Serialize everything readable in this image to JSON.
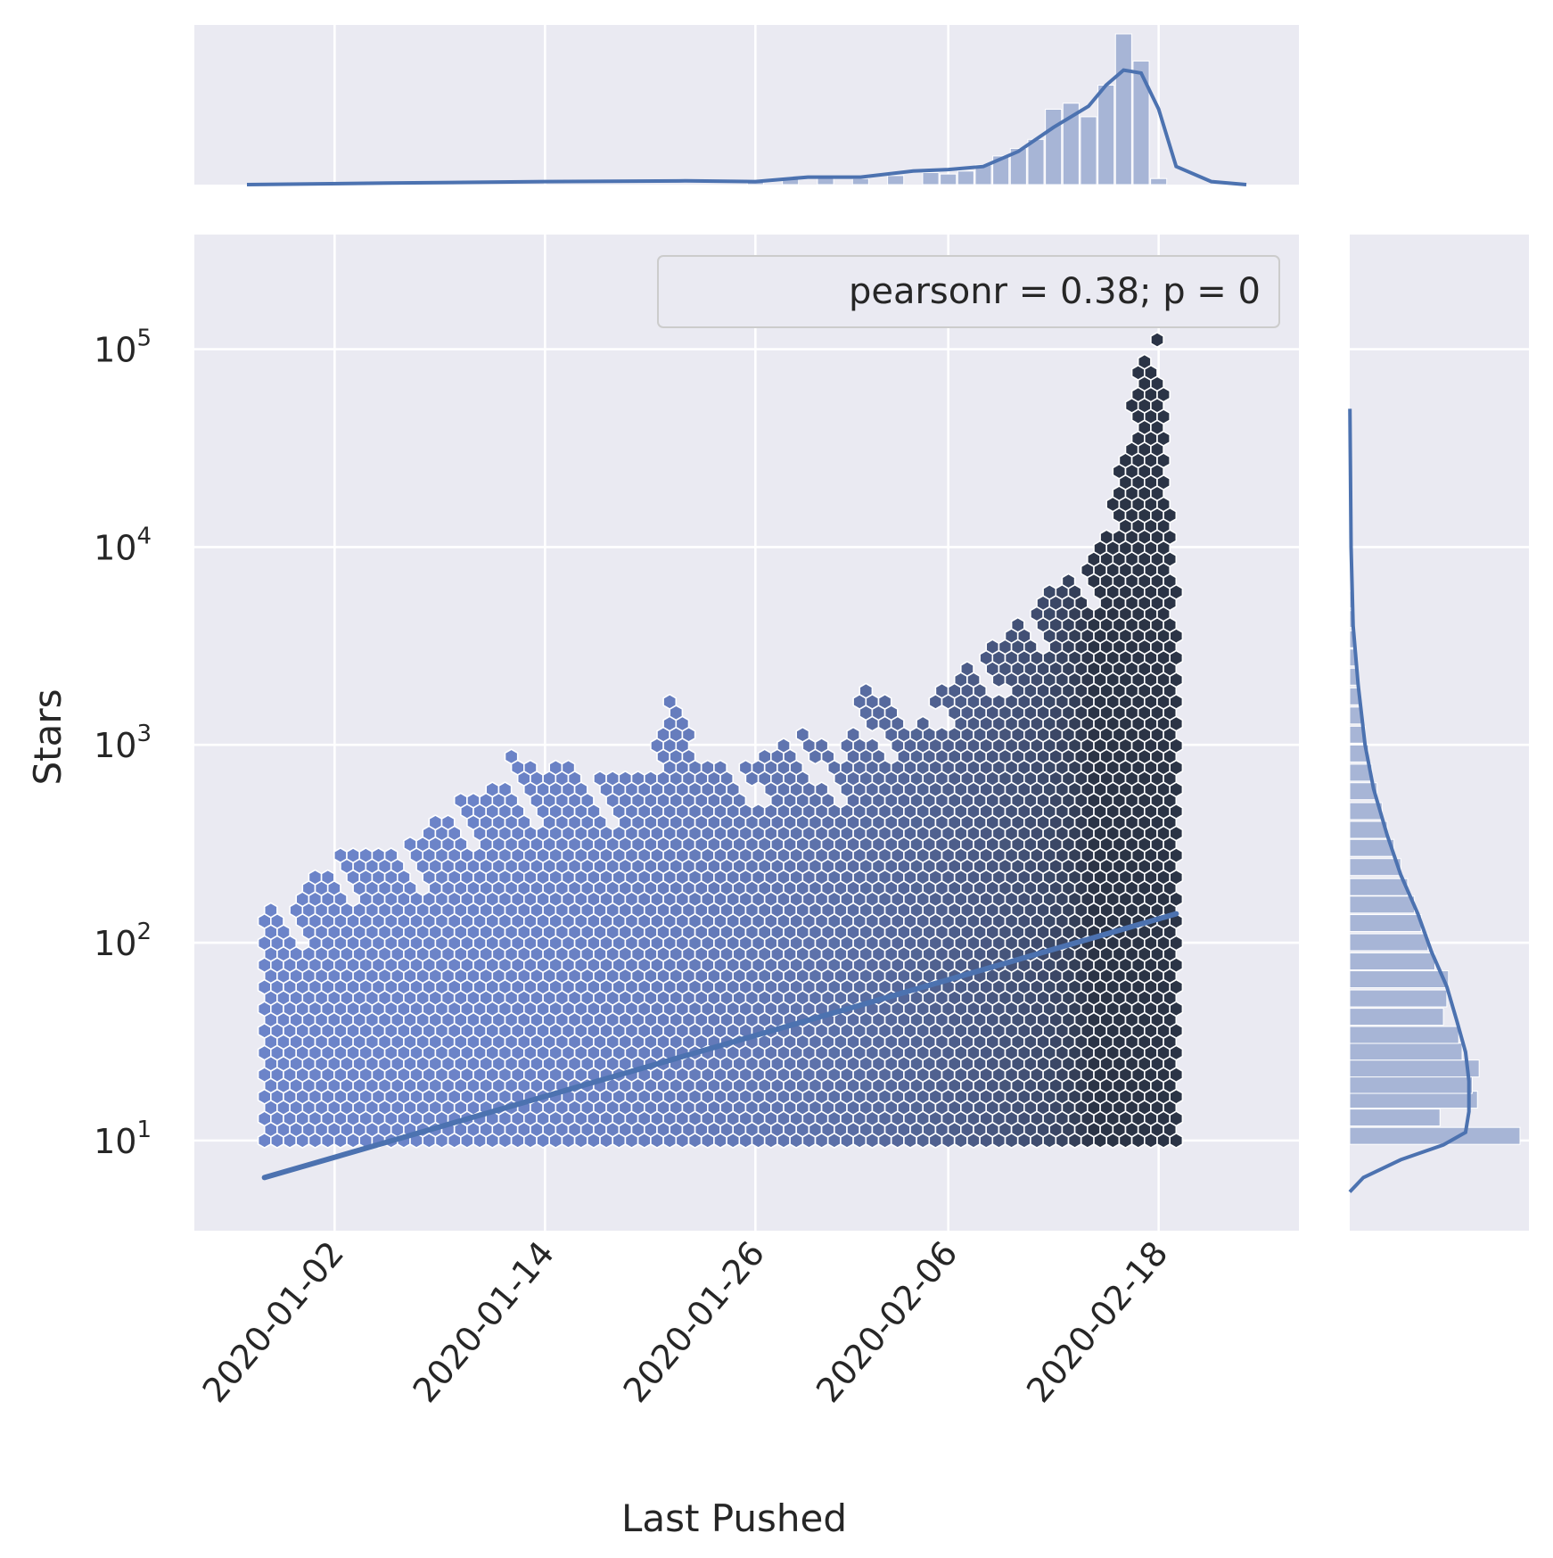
{
  "chart_data": {
    "type": "hexbin-jointplot",
    "xlabel": "Last Pushed",
    "ylabel": "Stars",
    "x_ticks": [
      "2020-01-02",
      "2020-01-14",
      "2020-01-26",
      "2020-02-06",
      "2020-02-18"
    ],
    "y_scale": "log",
    "y_ticks": [
      {
        "base": "10",
        "exp": "1",
        "value": 10
      },
      {
        "base": "10",
        "exp": "2",
        "value": 100
      },
      {
        "base": "10",
        "exp": "3",
        "value": 1000
      },
      {
        "base": "10",
        "exp": "4",
        "value": 10000
      },
      {
        "base": "10",
        "exp": "5",
        "value": 100000
      }
    ],
    "xlim": [
      "2019-12-25",
      "2020-02-26"
    ],
    "ylim": [
      3.5,
      380000
    ],
    "legend": {
      "text": "pearsonr = 0.38; p = 0",
      "placement": "upper right"
    },
    "grid": true,
    "regression_line": {
      "points": [
        {
          "x": "2019-12-29",
          "y": 6.5
        },
        {
          "x": "2020-02-19",
          "y": 140
        }
      ]
    },
    "hexbin_envelope": [
      {
        "x": "2019-12-29",
        "top": 140
      },
      {
        "x": "2019-12-31",
        "top": 170
      },
      {
        "x": "2020-01-02",
        "top": 290
      },
      {
        "x": "2020-01-05",
        "top": 270
      },
      {
        "x": "2020-01-07",
        "top": 340
      },
      {
        "x": "2020-01-09",
        "top": 520
      },
      {
        "x": "2020-01-11",
        "top": 600
      },
      {
        "x": "2020-01-12",
        "top": 900
      },
      {
        "x": "2020-01-14",
        "top": 700
      },
      {
        "x": "2020-01-15",
        "top": 800
      },
      {
        "x": "2020-01-18",
        "top": 700
      },
      {
        "x": "2020-01-20",
        "top": 700
      },
      {
        "x": "2020-01-21",
        "top": 1800
      },
      {
        "x": "2020-01-23",
        "top": 800
      },
      {
        "x": "2020-01-26",
        "top": 800
      },
      {
        "x": "2020-01-29",
        "top": 1200
      },
      {
        "x": "2020-01-31",
        "top": 800
      },
      {
        "x": "2020-02-01",
        "top": 2100
      },
      {
        "x": "2020-02-02",
        "top": 1800
      },
      {
        "x": "2020-02-04",
        "top": 1200
      },
      {
        "x": "2020-02-07",
        "top": 2700
      },
      {
        "x": "2020-02-09",
        "top": 3200
      },
      {
        "x": "2020-02-11",
        "top": 5500
      },
      {
        "x": "2020-02-13",
        "top": 7000
      },
      {
        "x": "2020-02-15",
        "top": 11000
      },
      {
        "x": "2020-02-17",
        "top": 100000
      },
      {
        "x": "2020-02-18",
        "top": 140000
      },
      {
        "x": "2020-02-19",
        "top": 7000
      }
    ],
    "hexbin_ymin": 10,
    "x_marginal": {
      "bins": [
        {
          "x": "2020-01-26",
          "count": 0.03
        },
        {
          "x": "2020-01-28",
          "count": 0.04
        },
        {
          "x": "2020-01-30",
          "count": 0.05
        },
        {
          "x": "2020-02-01",
          "count": 0.04
        },
        {
          "x": "2020-02-03",
          "count": 0.06
        },
        {
          "x": "2020-02-05",
          "count": 0.08
        },
        {
          "x": "2020-02-06",
          "count": 0.07
        },
        {
          "x": "2020-02-07",
          "count": 0.09
        },
        {
          "x": "2020-02-08",
          "count": 0.13
        },
        {
          "x": "2020-02-09",
          "count": 0.19
        },
        {
          "x": "2020-02-10",
          "count": 0.24
        },
        {
          "x": "2020-02-11",
          "count": 0.3
        },
        {
          "x": "2020-02-12",
          "count": 0.5
        },
        {
          "x": "2020-02-13",
          "count": 0.54
        },
        {
          "x": "2020-02-14",
          "count": 0.45
        },
        {
          "x": "2020-02-15",
          "count": 0.66
        },
        {
          "x": "2020-02-16",
          "count": 1.0
        },
        {
          "x": "2020-02-17",
          "count": 0.82
        },
        {
          "x": "2020-02-18",
          "count": 0.04
        }
      ],
      "kde": [
        {
          "x": "2019-12-28",
          "d": 0.0
        },
        {
          "x": "2020-01-05",
          "d": 0.01
        },
        {
          "x": "2020-01-14",
          "d": 0.02
        },
        {
          "x": "2020-01-22",
          "d": 0.025
        },
        {
          "x": "2020-01-26",
          "d": 0.02
        },
        {
          "x": "2020-01-29",
          "d": 0.05
        },
        {
          "x": "2020-02-01",
          "d": 0.05
        },
        {
          "x": "2020-02-04",
          "d": 0.09
        },
        {
          "x": "2020-02-06",
          "d": 0.1
        },
        {
          "x": "2020-02-08",
          "d": 0.12
        },
        {
          "x": "2020-02-10",
          "d": 0.22
        },
        {
          "x": "2020-02-12",
          "d": 0.38
        },
        {
          "x": "2020-02-14",
          "d": 0.52
        },
        {
          "x": "2020-02-15",
          "d": 0.66
        },
        {
          "x": "2020-02-16",
          "d": 0.76
        },
        {
          "x": "2020-02-17",
          "d": 0.74
        },
        {
          "x": "2020-02-18",
          "d": 0.5
        },
        {
          "x": "2020-02-19",
          "d": 0.12
        },
        {
          "x": "2020-02-21",
          "d": 0.02
        },
        {
          "x": "2020-02-23",
          "d": 0.0
        }
      ]
    },
    "y_marginal": {
      "bins": [
        {
          "y": 10.5,
          "count": 1.0
        },
        {
          "y": 13,
          "count": 0.53
        },
        {
          "y": 16,
          "count": 0.75
        },
        {
          "y": 19,
          "count": 0.72
        },
        {
          "y": 23,
          "count": 0.76
        },
        {
          "y": 28,
          "count": 0.66
        },
        {
          "y": 34,
          "count": 0.64
        },
        {
          "y": 42,
          "count": 0.55
        },
        {
          "y": 52,
          "count": 0.57
        },
        {
          "y": 65,
          "count": 0.58
        },
        {
          "y": 80,
          "count": 0.5
        },
        {
          "y": 100,
          "count": 0.46
        },
        {
          "y": 125,
          "count": 0.42
        },
        {
          "y": 155,
          "count": 0.38
        },
        {
          "y": 190,
          "count": 0.34
        },
        {
          "y": 240,
          "count": 0.3
        },
        {
          "y": 300,
          "count": 0.26
        },
        {
          "y": 370,
          "count": 0.22
        },
        {
          "y": 460,
          "count": 0.19
        },
        {
          "y": 580,
          "count": 0.16
        },
        {
          "y": 720,
          "count": 0.13
        },
        {
          "y": 900,
          "count": 0.11
        },
        {
          "y": 1120,
          "count": 0.09
        },
        {
          "y": 1400,
          "count": 0.07
        },
        {
          "y": 1750,
          "count": 0.06
        },
        {
          "y": 2200,
          "count": 0.05
        },
        {
          "y": 2750,
          "count": 0.04
        },
        {
          "y": 3400,
          "count": 0.03
        },
        {
          "y": 4300,
          "count": 0.025
        },
        {
          "y": 5400,
          "count": 0.02
        }
      ],
      "kde": [
        {
          "y": 5.5,
          "d": 0.0
        },
        {
          "y": 6.5,
          "d": 0.08
        },
        {
          "y": 8,
          "d": 0.3
        },
        {
          "y": 9.5,
          "d": 0.55
        },
        {
          "y": 11,
          "d": 0.68
        },
        {
          "y": 14,
          "d": 0.7
        },
        {
          "y": 20,
          "d": 0.7
        },
        {
          "y": 28,
          "d": 0.68
        },
        {
          "y": 40,
          "d": 0.63
        },
        {
          "y": 60,
          "d": 0.57
        },
        {
          "y": 90,
          "d": 0.48
        },
        {
          "y": 140,
          "d": 0.4
        },
        {
          "y": 220,
          "d": 0.3
        },
        {
          "y": 350,
          "d": 0.22
        },
        {
          "y": 600,
          "d": 0.14
        },
        {
          "y": 1000,
          "d": 0.09
        },
        {
          "y": 2000,
          "d": 0.05
        },
        {
          "y": 4000,
          "d": 0.02
        },
        {
          "y": 10000,
          "d": 0.008
        },
        {
          "y": 50000,
          "d": 0.001
        }
      ]
    },
    "colors": {
      "background": "#eaeaf2",
      "grid": "#ffffff",
      "hex_light": "#6c84c9",
      "hex_dark": "#2b3446",
      "hex_edge": "#ffffff",
      "line": "#4c72b0",
      "hist": "#a7b5d6",
      "text": "#262626",
      "legend_bg": "#eaeaf2",
      "legend_edge": "#cccccc"
    }
  }
}
